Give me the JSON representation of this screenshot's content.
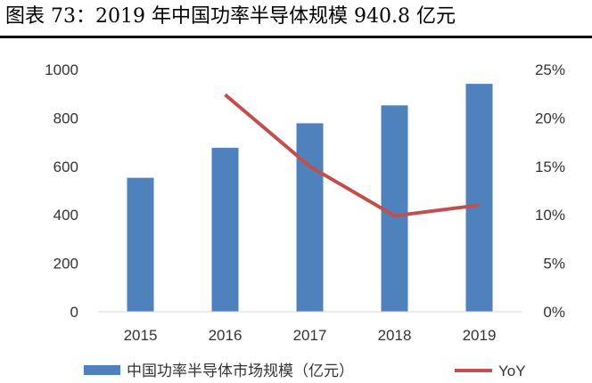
{
  "figure": {
    "title": "图表 73：2019 年中国功率半导体规模 940.8 亿元"
  },
  "colors": {
    "bar": "#4f81bd",
    "line": "#c0504d",
    "axis": "#d9d9d9",
    "text": "#333333"
  },
  "chart_data": {
    "type": "bar",
    "categories": [
      "2015",
      "2016",
      "2017",
      "2018",
      "2019"
    ],
    "series": [
      {
        "name": "中国功率半导体市场规模（亿元）",
        "type": "bar",
        "axis": "left",
        "values": [
          553,
          677,
          778,
          852,
          940.8
        ]
      },
      {
        "name": "YoY",
        "type": "line",
        "axis": "right",
        "values": [
          null,
          22.4,
          15.0,
          9.9,
          11.0
        ]
      }
    ],
    "yticks_left": [
      "0",
      "200",
      "400",
      "600",
      "800",
      "1000"
    ],
    "yticks_right": [
      "0%",
      "5%",
      "10%",
      "15%",
      "20%",
      "25%"
    ],
    "ylim_left": [
      0,
      1000
    ],
    "ylim_right": [
      0,
      25
    ],
    "grid": false,
    "legend_position": "bottom"
  }
}
